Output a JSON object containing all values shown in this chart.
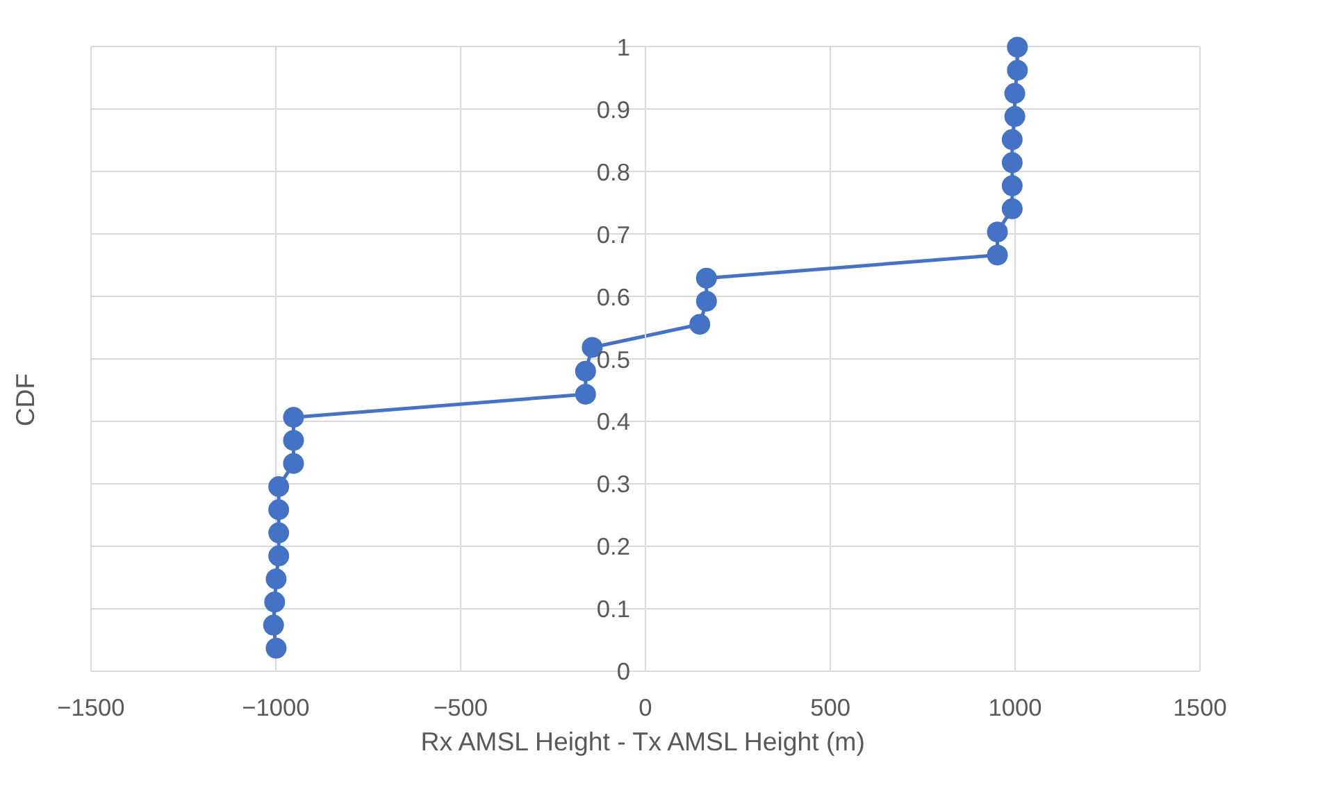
{
  "chart_data": {
    "type": "line",
    "xlabel": "Rx AMSL Height - Tx AMSL Height (m)",
    "ylabel": "CDF",
    "xlim": [
      -1500,
      1500
    ],
    "xticks": [
      -1500,
      -1000,
      -500,
      0,
      500,
      1000,
      1500
    ],
    "ylim": [
      0,
      1
    ],
    "yticks": [
      0,
      0.1,
      0.2,
      0.3,
      0.4,
      0.5,
      0.6,
      0.7,
      0.8,
      0.9,
      1
    ],
    "grid": true,
    "marker": "circle",
    "line_style": "solid",
    "series": [
      {
        "color": "#4472c4",
        "x": [
          -999,
          -1006,
          -1003,
          -999,
          -992,
          -992,
          -992,
          -992,
          -952,
          -952,
          -952,
          -162,
          -162,
          -144,
          147,
          165,
          165,
          952,
          952,
          992,
          992,
          992,
          992,
          999,
          999,
          1006,
          1006
        ],
        "values": [
          0.037,
          0.074,
          0.111,
          0.148,
          0.185,
          0.222,
          0.259,
          0.296,
          0.333,
          0.37,
          0.407,
          0.444,
          0.481,
          0.519,
          0.556,
          0.593,
          0.63,
          0.667,
          0.704,
          0.741,
          0.778,
          0.815,
          0.852,
          0.889,
          0.926,
          0.963,
          1.0
        ]
      }
    ]
  }
}
